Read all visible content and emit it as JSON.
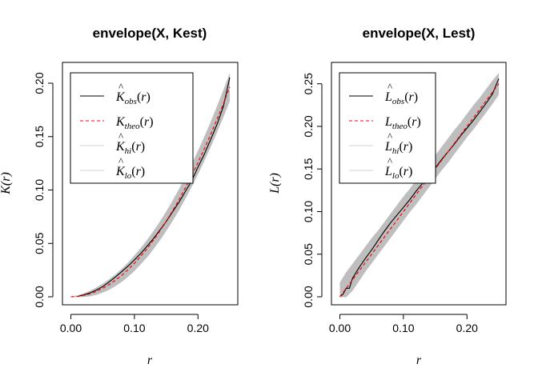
{
  "chart_data": [
    {
      "type": "line",
      "title": "envelope(X, Kest)",
      "xlabel": "r",
      "ylabel": "K(r)",
      "xlim": [
        0,
        0.25
      ],
      "ylim": [
        0,
        0.2
      ],
      "xticks": [
        0.0,
        0.1,
        0.2
      ],
      "xtick_labels": [
        "0.00",
        "0.10",
        "0.20"
      ],
      "yticks": [
        0.0,
        0.05,
        0.1,
        0.15,
        0.2
      ],
      "ytick_labels": [
        "0.00",
        "0.05",
        "0.10",
        "0.15",
        "0.20"
      ],
      "legend_position": "top-left",
      "legend": [
        {
          "base": "K",
          "hat": true,
          "sub": "obs",
          "color": "#000000",
          "style": "solid"
        },
        {
          "base": "K",
          "hat": false,
          "sub": "theo",
          "color": "#ff0000",
          "style": "dashed"
        },
        {
          "base": "K",
          "hat": true,
          "sub": "hi",
          "color": "#d3d3d3",
          "style": "solid"
        },
        {
          "base": "K",
          "hat": true,
          "sub": "lo",
          "color": "#d3d3d3",
          "style": "solid"
        }
      ],
      "series": [
        {
          "sub": "obs",
          "x": [
            0,
            0.01,
            0.02,
            0.03,
            0.04,
            0.05,
            0.06,
            0.07,
            0.08,
            0.09,
            0.1,
            0.11,
            0.12,
            0.13,
            0.14,
            0.15,
            0.16,
            0.17,
            0.18,
            0.19,
            0.2,
            0.21,
            0.22,
            0.23,
            0.24,
            0.25
          ],
          "y": [
            0,
            0.0004,
            0.0017,
            0.0037,
            0.0063,
            0.0095,
            0.0138,
            0.0185,
            0.0235,
            0.0288,
            0.0345,
            0.0405,
            0.0475,
            0.0545,
            0.0625,
            0.0705,
            0.0795,
            0.0885,
            0.0985,
            0.1085,
            0.1215,
            0.1335,
            0.1475,
            0.1615,
            0.1785,
            0.2055
          ]
        },
        {
          "sub": "theo",
          "x": [
            0,
            0.01,
            0.02,
            0.03,
            0.04,
            0.05,
            0.06,
            0.07,
            0.08,
            0.09,
            0.1,
            0.11,
            0.12,
            0.13,
            0.14,
            0.15,
            0.16,
            0.17,
            0.18,
            0.19,
            0.2,
            0.21,
            0.22,
            0.23,
            0.24,
            0.25
          ],
          "y": [
            0,
            0.0003,
            0.0013,
            0.0028,
            0.005,
            0.0079,
            0.0113,
            0.0154,
            0.0201,
            0.0254,
            0.0314,
            0.038,
            0.0452,
            0.0531,
            0.0616,
            0.0707,
            0.0804,
            0.0908,
            0.1018,
            0.1134,
            0.1257,
            0.1385,
            0.1521,
            0.1662,
            0.181,
            0.1963
          ]
        },
        {
          "sub": "hi",
          "x": [
            0,
            0.01,
            0.02,
            0.03,
            0.04,
            0.05,
            0.06,
            0.07,
            0.08,
            0.09,
            0.1,
            0.11,
            0.12,
            0.13,
            0.14,
            0.15,
            0.16,
            0.17,
            0.18,
            0.19,
            0.2,
            0.21,
            0.22,
            0.23,
            0.24,
            0.25
          ],
          "y": [
            0,
            0.001,
            0.0028,
            0.0052,
            0.0082,
            0.0118,
            0.0159,
            0.0205,
            0.0258,
            0.0316,
            0.0381,
            0.0451,
            0.0528,
            0.061,
            0.0698,
            0.0792,
            0.0893,
            0.1,
            0.1113,
            0.1232,
            0.1359,
            0.1491,
            0.163,
            0.1775,
            0.1927,
            0.2085
          ]
        },
        {
          "sub": "lo",
          "x": [
            0,
            0.01,
            0.02,
            0.03,
            0.04,
            0.05,
            0.06,
            0.07,
            0.08,
            0.09,
            0.1,
            0.11,
            0.12,
            0.13,
            0.14,
            0.15,
            0.16,
            0.17,
            0.18,
            0.19,
            0.2,
            0.21,
            0.22,
            0.23,
            0.24,
            0.25
          ],
          "y": [
            0,
            0,
            0.0002,
            0.0008,
            0.0022,
            0.0043,
            0.0069,
            0.0103,
            0.0144,
            0.0192,
            0.0247,
            0.0309,
            0.0376,
            0.0452,
            0.0534,
            0.0622,
            0.0715,
            0.0816,
            0.0923,
            0.1036,
            0.1155,
            0.128,
            0.1412,
            0.1549,
            0.1693,
            0.1841
          ]
        }
      ]
    },
    {
      "type": "line",
      "title": "envelope(X, Lest)",
      "xlabel": "r",
      "ylabel": "L(r)",
      "xlim": [
        0,
        0.25
      ],
      "ylim": [
        0,
        0.25
      ],
      "xticks": [
        0.0,
        0.1,
        0.2
      ],
      "xtick_labels": [
        "0.00",
        "0.10",
        "0.20"
      ],
      "yticks": [
        0.0,
        0.05,
        0.1,
        0.15,
        0.2,
        0.25
      ],
      "ytick_labels": [
        "0.00",
        "0.05",
        "0.10",
        "0.15",
        "0.20",
        "0.25"
      ],
      "legend_position": "top-left",
      "legend": [
        {
          "base": "L",
          "hat": true,
          "sub": "obs",
          "color": "#000000",
          "style": "solid"
        },
        {
          "base": "L",
          "hat": false,
          "sub": "theo",
          "color": "#ff0000",
          "style": "dashed"
        },
        {
          "base": "L",
          "hat": true,
          "sub": "hi",
          "color": "#d3d3d3",
          "style": "solid"
        },
        {
          "base": "L",
          "hat": true,
          "sub": "lo",
          "color": "#d3d3d3",
          "style": "solid"
        }
      ],
      "series": [
        {
          "sub": "obs",
          "x": [
            0,
            0.005,
            0.01,
            0.015,
            0.02,
            0.03,
            0.04,
            0.05,
            0.06,
            0.07,
            0.08,
            0.09,
            0.1,
            0.11,
            0.12,
            0.13,
            0.14,
            0.15,
            0.16,
            0.17,
            0.18,
            0.19,
            0.2,
            0.21,
            0.22,
            0.23,
            0.24,
            0.25
          ],
          "y": [
            0,
            0.003,
            0.01,
            0.01,
            0.022,
            0.034,
            0.045,
            0.055,
            0.066,
            0.077,
            0.087,
            0.096,
            0.105,
            0.114,
            0.124,
            0.133,
            0.142,
            0.151,
            0.161,
            0.17,
            0.179,
            0.189,
            0.198,
            0.207,
            0.217,
            0.227,
            0.238,
            0.256
          ]
        },
        {
          "sub": "theo",
          "x": [
            0,
            0.25
          ],
          "y": [
            0,
            0.25
          ]
        },
        {
          "sub": "hi",
          "x": [
            0,
            0.01,
            0.02,
            0.03,
            0.04,
            0.05,
            0.06,
            0.07,
            0.08,
            0.09,
            0.1,
            0.11,
            0.12,
            0.13,
            0.14,
            0.15,
            0.16,
            0.17,
            0.18,
            0.19,
            0.2,
            0.21,
            0.22,
            0.23,
            0.24,
            0.25
          ],
          "y": [
            0.016,
            0.028,
            0.038,
            0.048,
            0.058,
            0.068,
            0.077,
            0.087,
            0.097,
            0.107,
            0.117,
            0.126,
            0.136,
            0.146,
            0.156,
            0.165,
            0.175,
            0.185,
            0.195,
            0.204,
            0.214,
            0.224,
            0.233,
            0.243,
            0.253,
            0.262
          ]
        },
        {
          "sub": "lo",
          "x": [
            0,
            0.01,
            0.02,
            0.03,
            0.04,
            0.05,
            0.06,
            0.07,
            0.08,
            0.09,
            0.1,
            0.11,
            0.12,
            0.13,
            0.14,
            0.15,
            0.16,
            0.17,
            0.18,
            0.19,
            0.2,
            0.21,
            0.22,
            0.23,
            0.24,
            0.25
          ],
          "y": [
            0,
            0,
            0.008,
            0.019,
            0.03,
            0.04,
            0.05,
            0.06,
            0.07,
            0.08,
            0.09,
            0.1,
            0.109,
            0.119,
            0.129,
            0.139,
            0.149,
            0.158,
            0.168,
            0.178,
            0.188,
            0.197,
            0.207,
            0.217,
            0.227,
            0.238
          ]
        }
      ]
    }
  ]
}
